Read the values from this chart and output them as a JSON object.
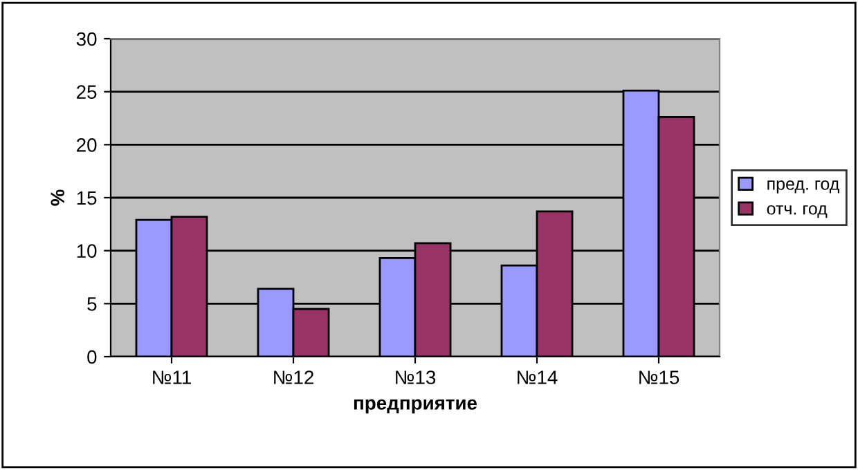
{
  "chart_data": {
    "type": "bar",
    "xlabel": "предприятие",
    "ylabel": "%",
    "categories": [
      "№11",
      "№12",
      "№13",
      "№14",
      "№15"
    ],
    "series": [
      {
        "name": "пред. год",
        "color": "#9999ff",
        "values": [
          12.9,
          6.4,
          9.3,
          8.6,
          25.1
        ]
      },
      {
        "name": "отч. год",
        "color": "#993366",
        "values": [
          13.2,
          4.5,
          10.7,
          13.7,
          22.6
        ]
      }
    ],
    "ylim": [
      0,
      30
    ],
    "yticks": [
      0,
      5,
      10,
      15,
      20,
      25,
      30
    ],
    "grid": "y",
    "legend": "right"
  }
}
